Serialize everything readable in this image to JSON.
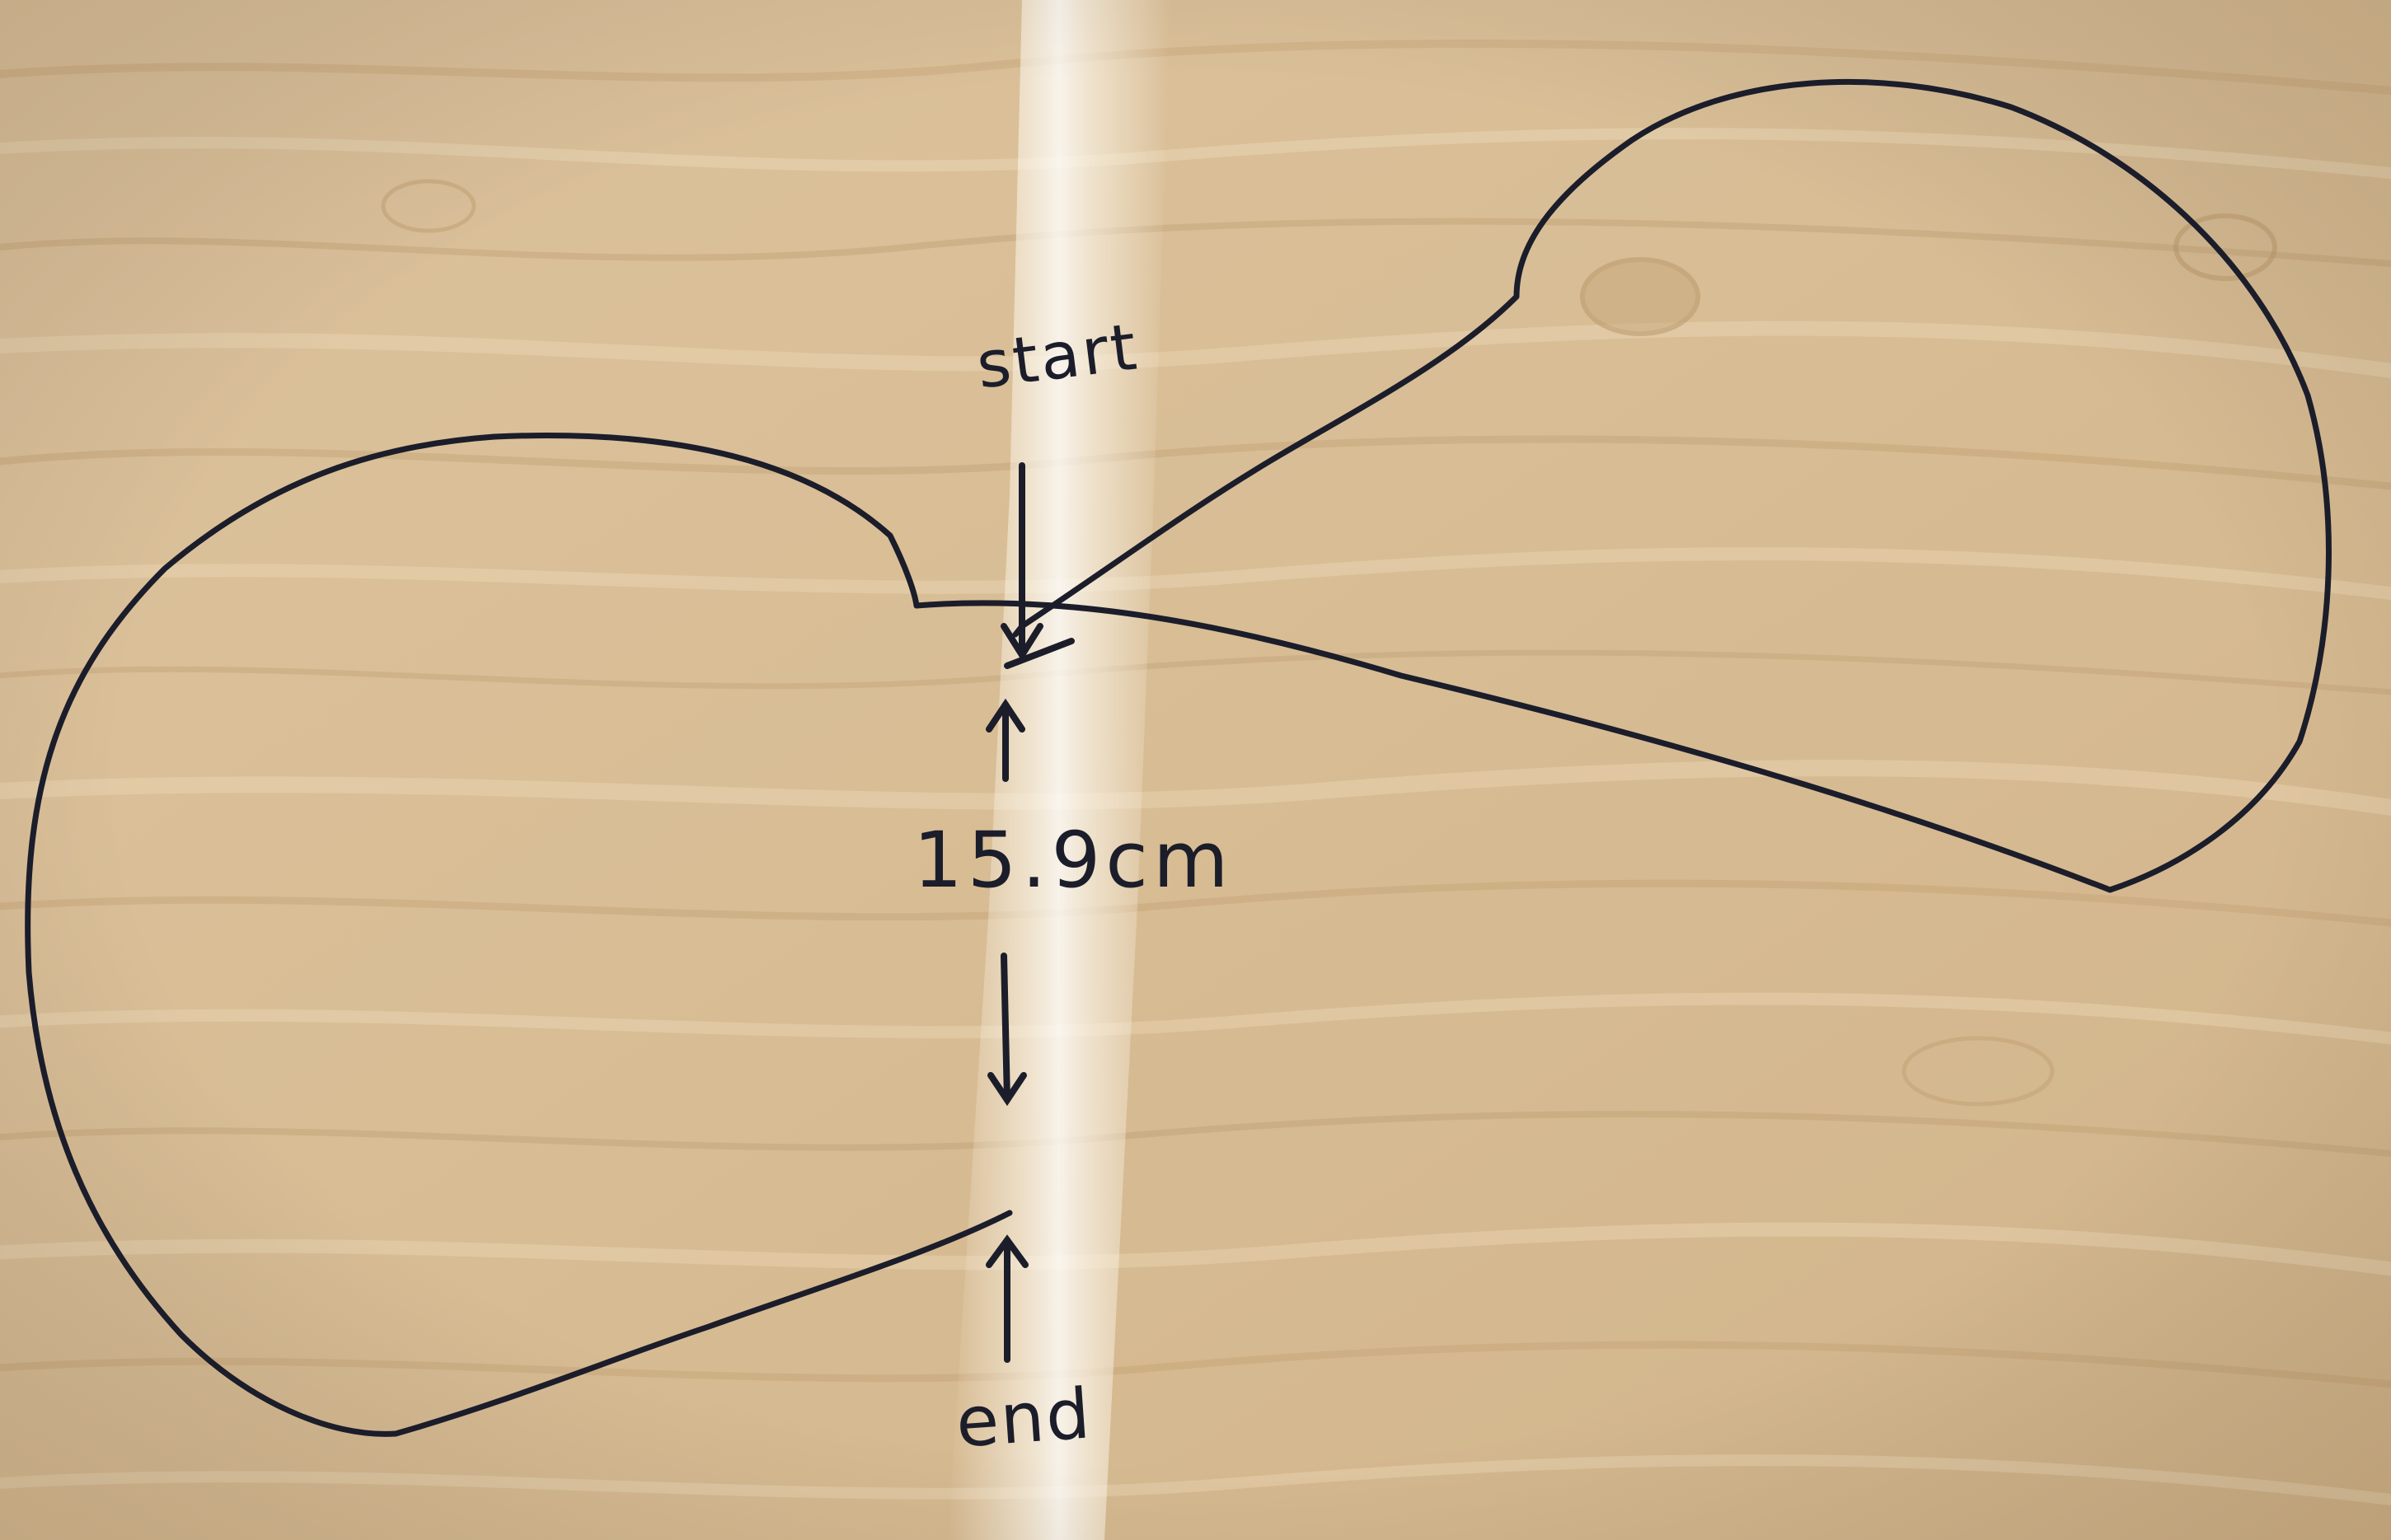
{
  "labels": {
    "start": "start",
    "distance": "15.9cm",
    "end": "end"
  },
  "colors": {
    "board": "#d9bf98",
    "grain_dark": "#bf9e70",
    "grain_light": "#ead7b6",
    "glare": "#fbf5e8",
    "ink": "#1b1d2a"
  }
}
